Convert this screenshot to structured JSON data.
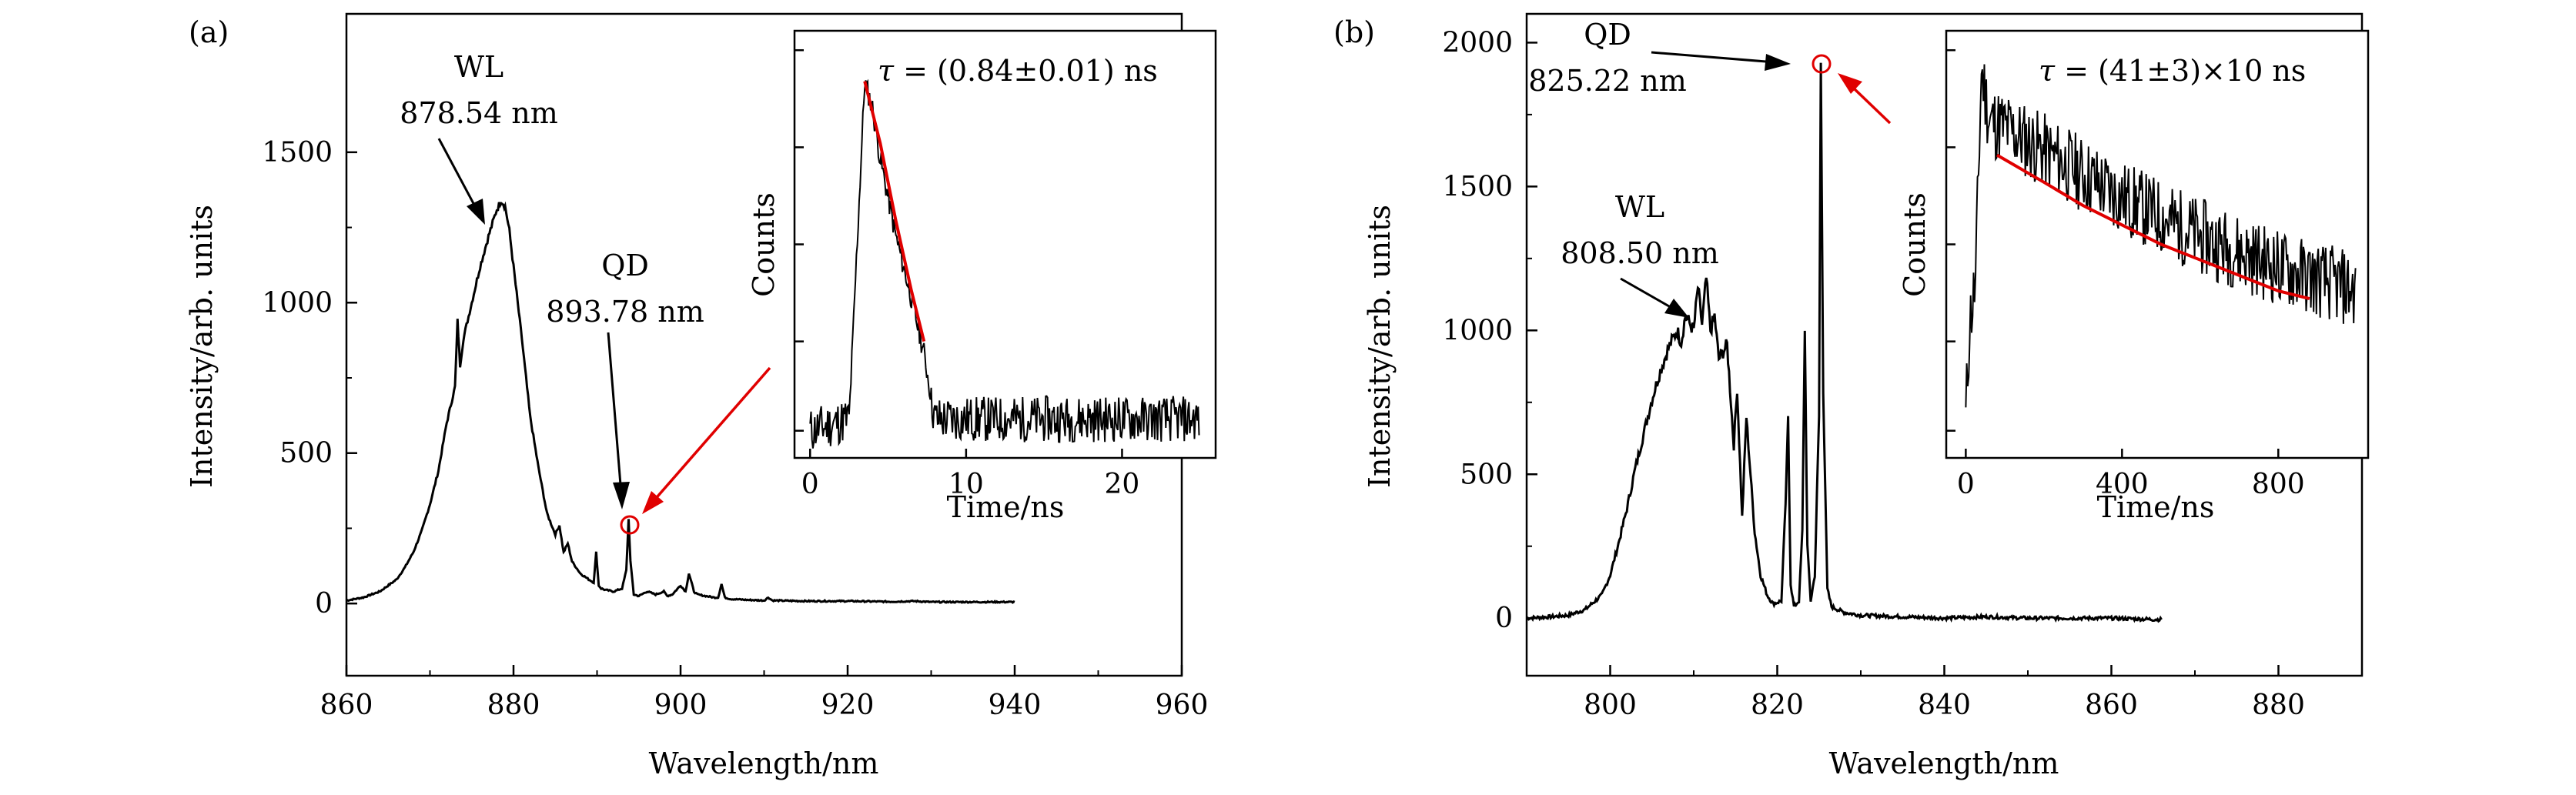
{
  "panels": [
    {
      "id": "a",
      "label": "(a)",
      "ylabel": "Intensity/arb. units",
      "xlabel": "Wavelength/nm",
      "wl_label": "WL",
      "wl_value": "878.54 nm",
      "qd_label": "QD",
      "qd_value": "893.78 nm",
      "inset": {
        "ylabel": "Counts",
        "xlabel": "Time/ns",
        "tau_symbol": "τ",
        "tau_text": " = (0.84±0.01) ns"
      }
    },
    {
      "id": "b",
      "label": "(b)",
      "ylabel": "Intensity/arb. units",
      "xlabel": "Wavelength/nm",
      "wl_label": "WL",
      "wl_value": "808.50 nm",
      "qd_label": "QD",
      "qd_value": "825.22 nm",
      "inset": {
        "ylabel": "Counts",
        "xlabel": "Time/ns",
        "tau_symbol": "τ",
        "tau_text": " = (41±3)×10 ns"
      }
    }
  ],
  "colors": {
    "line": "#000000",
    "fit": "#e00000",
    "marker": "#e00000"
  },
  "chart_data": [
    {
      "type": "line",
      "panel": "a",
      "title": "",
      "xlabel": "Wavelength/nm",
      "ylabel": "Intensity/arb. units",
      "xlim": [
        860,
        960
      ],
      "ylim": [
        -240,
        1960
      ],
      "xticks": [
        860,
        880,
        900,
        920,
        940,
        960
      ],
      "yticks": [
        0,
        500,
        1000,
        1500
      ],
      "series": [
        {
          "name": "PL spectrum",
          "x": [
            860,
            862,
            864,
            866,
            867,
            868,
            869,
            870,
            871,
            871.5,
            872,
            872.5,
            873,
            873.3,
            873.6,
            874,
            875,
            876,
            877,
            878,
            878.54,
            879,
            879.5,
            880,
            881,
            882,
            883,
            884,
            885,
            885.5,
            886,
            886.5,
            887,
            888,
            889,
            889.6,
            889.9,
            890.2,
            890.5,
            891,
            892,
            893,
            893.5,
            893.78,
            894.0,
            894.4,
            895,
            896,
            897,
            898,
            898.4,
            899,
            900,
            900.6,
            901,
            901.6,
            902,
            903,
            904,
            904.5,
            904.9,
            905.3,
            906,
            908,
            910,
            910.5,
            911,
            915,
            920,
            925,
            928,
            930,
            935,
            940
          ],
          "y": [
            10,
            20,
            40,
            80,
            120,
            170,
            240,
            330,
            440,
            520,
            600,
            660,
            720,
            940,
            790,
            880,
            1000,
            1120,
            1220,
            1310,
            1340,
            1320,
            1240,
            1120,
            880,
            620,
            450,
            300,
            230,
            260,
            170,
            200,
            140,
            100,
            80,
            70,
            170,
            60,
            50,
            45,
            40,
            50,
            110,
            280,
            140,
            30,
            25,
            40,
            30,
            40,
            25,
            30,
            60,
            40,
            100,
            40,
            30,
            25,
            20,
            20,
            65,
            20,
            15,
            12,
            10,
            20,
            10,
            8,
            8,
            6,
            8,
            5,
            5,
            5
          ]
        }
      ]
    },
    {
      "type": "line",
      "panel": "a-inset",
      "xlabel": "Time/ns",
      "ylabel": "Counts",
      "xlim": [
        -1,
        26
      ],
      "yscale": "log",
      "xticks": [
        0,
        10,
        20
      ],
      "series": [
        {
          "name": "Decay",
          "x": [
            0,
            2.5,
            3.5,
            4.0,
            4.5,
            5.5,
            6.5,
            7.3,
            8.0,
            25
          ],
          "y": [
            0.02,
            0.05,
            0.92,
            0.85,
            0.72,
            0.52,
            0.36,
            0.22,
            0.05,
            0.05
          ]
        },
        {
          "name": "Exponential fit",
          "x": [
            3.5,
            4.5,
            5.5,
            6.5,
            7.3
          ],
          "y": [
            0.92,
            0.76,
            0.56,
            0.38,
            0.25
          ]
        }
      ],
      "annotations": [
        "τ = (0.84±0.01) ns"
      ]
    },
    {
      "type": "line",
      "panel": "b",
      "title": "",
      "xlabel": "Wavelength/nm",
      "ylabel": "Intensity/arb. units",
      "xlim": [
        790,
        890
      ],
      "ylim": [
        -200,
        2100
      ],
      "xticks": [
        800,
        820,
        840,
        860,
        880
      ],
      "yticks": [
        0,
        500,
        1000,
        1500,
        2000
      ],
      "series": [
        {
          "name": "PL spectrum",
          "x": [
            790,
            793,
            795,
            797,
            799,
            800,
            801,
            802,
            803,
            804,
            805,
            806,
            807,
            808,
            808.5,
            809,
            810,
            810.5,
            811,
            811.5,
            812,
            812.5,
            813,
            814,
            814.8,
            815.2,
            815.8,
            816.3,
            816.8,
            817.3,
            818,
            818.8,
            819.5,
            820.5,
            821.0,
            821.3,
            821.6,
            822,
            822.6,
            823.0,
            823.3,
            823.6,
            824.0,
            824.5,
            825.0,
            825.22,
            825.5,
            826.0,
            826.5,
            828,
            830,
            835,
            840,
            845,
            850,
            855,
            860,
            866
          ],
          "y": [
            0,
            5,
            10,
            30,
            80,
            150,
            260,
            380,
            520,
            640,
            760,
            860,
            940,
            1000,
            960,
            1050,
            1000,
            1150,
            1020,
            1180,
            1000,
            1050,
            900,
            950,
            600,
            800,
            350,
            700,
            500,
            300,
            150,
            80,
            50,
            60,
            400,
            690,
            120,
            40,
            60,
            300,
            1010,
            250,
            60,
            150,
            700,
            1920,
            800,
            100,
            40,
            20,
            10,
            5,
            0,
            5,
            0,
            0,
            0,
            -5
          ]
        }
      ]
    },
    {
      "type": "line",
      "panel": "b-inset",
      "xlabel": "Time/ns",
      "ylabel": "Counts",
      "xlim": [
        -50,
        1030
      ],
      "yscale": "log",
      "xticks": [
        0,
        400,
        800
      ],
      "series": [
        {
          "name": "Decay",
          "x": [
            0,
            10,
            25,
            40,
            60,
            100,
            200,
            300,
            400,
            500,
            600,
            700,
            800,
            900,
            1000
          ],
          "y": [
            0.05,
            0.3,
            0.4,
            0.95,
            0.82,
            0.8,
            0.74,
            0.68,
            0.62,
            0.57,
            0.52,
            0.48,
            0.44,
            0.41,
            0.38
          ]
        },
        {
          "name": "Exponential fit",
          "x": [
            80,
            200,
            300,
            400,
            500,
            600,
            700,
            800,
            880
          ],
          "y": [
            0.73,
            0.66,
            0.6,
            0.55,
            0.5,
            0.46,
            0.42,
            0.38,
            0.36
          ]
        }
      ],
      "annotations": [
        "τ = (41±3)×10 ns"
      ]
    }
  ]
}
